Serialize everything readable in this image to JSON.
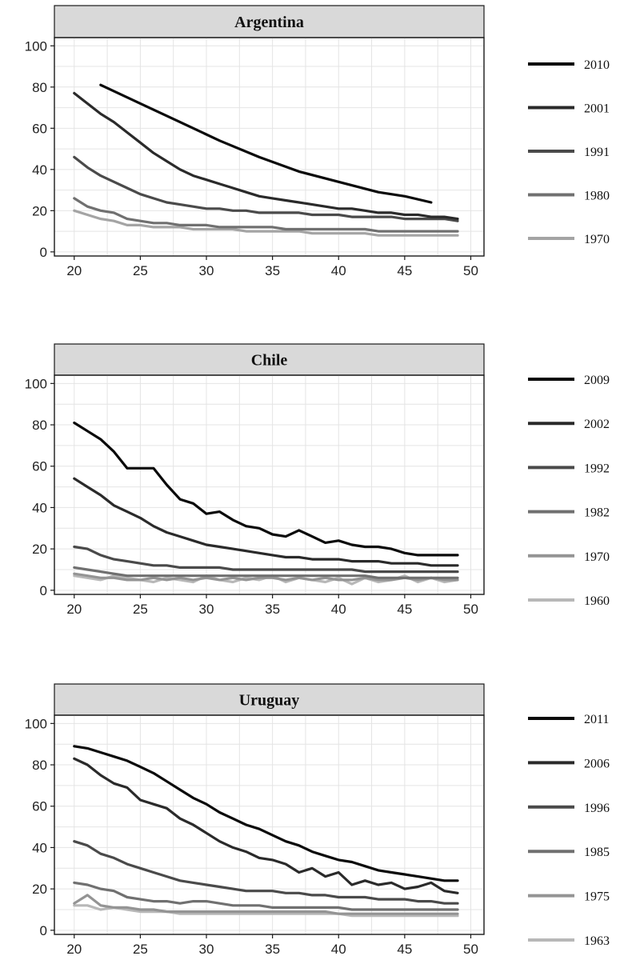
{
  "chart_data": [
    {
      "type": "line",
      "title": "Argentina",
      "xlabel": "",
      "ylabel": "",
      "xlim": [
        18.5,
        51
      ],
      "ylim": [
        -2,
        104
      ],
      "xticks": [
        20,
        25,
        30,
        35,
        40,
        45,
        50
      ],
      "yticks": [
        0,
        20,
        40,
        60,
        80,
        100
      ],
      "grid": true,
      "legend_position": "right",
      "series": [
        {
          "name": "2010",
          "color": "#0a0a0a",
          "x": [
            22,
            25,
            28,
            31,
            34,
            37,
            40,
            43,
            45,
            47
          ],
          "values": [
            81,
            72,
            63,
            54,
            46,
            39,
            34,
            29,
            27,
            24
          ]
        },
        {
          "name": "2001",
          "color": "#2a2a2a",
          "x": [
            20,
            21,
            22,
            23,
            24,
            25,
            26,
            27,
            28,
            29,
            30,
            31,
            32,
            33,
            34,
            35,
            36,
            37,
            38,
            39,
            40,
            41,
            42,
            43,
            44,
            45,
            46,
            47,
            48,
            49
          ],
          "values": [
            77,
            72,
            67,
            63,
            58,
            53,
            48,
            44,
            40,
            37,
            35,
            33,
            31,
            29,
            27,
            26,
            25,
            24,
            23,
            22,
            21,
            21,
            20,
            19,
            19,
            18,
            18,
            17,
            17,
            16
          ]
        },
        {
          "name": "1991",
          "color": "#4a4a4a",
          "x": [
            20,
            21,
            22,
            23,
            24,
            25,
            26,
            27,
            28,
            29,
            30,
            31,
            32,
            33,
            34,
            35,
            36,
            37,
            38,
            39,
            40,
            41,
            42,
            43,
            44,
            45,
            46,
            47,
            48,
            49
          ],
          "values": [
            46,
            41,
            37,
            34,
            31,
            28,
            26,
            24,
            23,
            22,
            21,
            21,
            20,
            20,
            19,
            19,
            19,
            19,
            18,
            18,
            18,
            17,
            17,
            17,
            17,
            16,
            16,
            16,
            16,
            15
          ]
        },
        {
          "name": "1980",
          "color": "#707070",
          "x": [
            20,
            21,
            22,
            23,
            24,
            25,
            26,
            27,
            28,
            29,
            30,
            31,
            32,
            33,
            34,
            35,
            36,
            37,
            38,
            39,
            40,
            41,
            42,
            43,
            44,
            45,
            46,
            47,
            48,
            49
          ],
          "values": [
            26,
            22,
            20,
            19,
            16,
            15,
            14,
            14,
            13,
            13,
            13,
            12,
            12,
            12,
            12,
            12,
            11,
            11,
            11,
            11,
            11,
            11,
            11,
            10,
            10,
            10,
            10,
            10,
            10,
            10
          ]
        },
        {
          "name": "1970",
          "color": "#a4a4a4",
          "x": [
            20,
            21,
            22,
            23,
            24,
            25,
            26,
            27,
            28,
            29,
            30,
            31,
            32,
            33,
            34,
            35,
            36,
            37,
            38,
            39,
            40,
            41,
            42,
            43,
            44,
            45,
            46,
            47,
            48,
            49
          ],
          "values": [
            20,
            18,
            16,
            15,
            13,
            13,
            12,
            12,
            12,
            11,
            11,
            11,
            11,
            10,
            10,
            10,
            10,
            10,
            9,
            9,
            9,
            9,
            9,
            8,
            8,
            8,
            8,
            8,
            8,
            8
          ]
        }
      ]
    },
    {
      "type": "line",
      "title": "Chile",
      "xlabel": "",
      "ylabel": "",
      "xlim": [
        18.5,
        51
      ],
      "ylim": [
        -2,
        104
      ],
      "xticks": [
        20,
        25,
        30,
        35,
        40,
        45,
        50
      ],
      "yticks": [
        0,
        20,
        40,
        60,
        80,
        100
      ],
      "grid": true,
      "legend_position": "right",
      "series": [
        {
          "name": "2009",
          "color": "#0a0a0a",
          "x": [
            20,
            21,
            22,
            23,
            24,
            25,
            26,
            27,
            28,
            29,
            30,
            31,
            32,
            33,
            34,
            35,
            36,
            37,
            38,
            39,
            40,
            41,
            42,
            43,
            44,
            45,
            46,
            47,
            48,
            49
          ],
          "values": [
            81,
            77,
            73,
            67,
            59,
            59,
            59,
            51,
            44,
            42,
            37,
            38,
            34,
            31,
            30,
            27,
            26,
            29,
            26,
            23,
            24,
            22,
            21,
            21,
            20,
            18,
            17,
            17,
            17,
            17
          ]
        },
        {
          "name": "2002",
          "color": "#2a2a2a",
          "x": [
            20,
            21,
            22,
            23,
            24,
            25,
            26,
            27,
            28,
            29,
            30,
            31,
            32,
            33,
            34,
            35,
            36,
            37,
            38,
            39,
            40,
            41,
            42,
            43,
            44,
            45,
            46,
            47,
            48,
            49
          ],
          "values": [
            54,
            50,
            46,
            41,
            38,
            35,
            31,
            28,
            26,
            24,
            22,
            21,
            20,
            19,
            18,
            17,
            16,
            16,
            15,
            15,
            15,
            14,
            14,
            14,
            13,
            13,
            13,
            12,
            12,
            12
          ]
        },
        {
          "name": "1992",
          "color": "#4a4a4a",
          "x": [
            20,
            21,
            22,
            23,
            24,
            25,
            26,
            27,
            28,
            29,
            30,
            31,
            32,
            33,
            34,
            35,
            36,
            37,
            38,
            39,
            40,
            41,
            42,
            43,
            44,
            45,
            46,
            47,
            48,
            49
          ],
          "values": [
            21,
            20,
            17,
            15,
            14,
            13,
            12,
            12,
            11,
            11,
            11,
            11,
            10,
            10,
            10,
            10,
            10,
            10,
            10,
            10,
            10,
            10,
            9,
            9,
            9,
            9,
            9,
            9,
            9,
            9
          ]
        },
        {
          "name": "1982",
          "color": "#707070",
          "x": [
            20,
            21,
            22,
            23,
            24,
            25,
            26,
            27,
            28,
            29,
            30,
            31,
            32,
            33,
            34,
            35,
            36,
            37,
            38,
            39,
            40,
            41,
            42,
            43,
            44,
            45,
            46,
            47,
            48,
            49
          ],
          "values": [
            11,
            10,
            9,
            8,
            7,
            7,
            7,
            7,
            7,
            7,
            7,
            7,
            7,
            7,
            7,
            7,
            7,
            7,
            7,
            7,
            7,
            7,
            7,
            6,
            6,
            6,
            6,
            6,
            6,
            6
          ]
        },
        {
          "name": "1970",
          "color": "#949494",
          "x": [
            20,
            21,
            22,
            23,
            24,
            25,
            26,
            27,
            28,
            29,
            30,
            31,
            32,
            33,
            34,
            35,
            36,
            37,
            38,
            39,
            40,
            41,
            42,
            43,
            44,
            45,
            46,
            47,
            48,
            49
          ],
          "values": [
            8,
            7,
            6,
            6,
            5,
            5,
            6,
            5,
            6,
            5,
            6,
            5,
            6,
            5,
            6,
            6,
            5,
            6,
            5,
            6,
            5,
            5,
            6,
            5,
            5,
            6,
            5,
            6,
            5,
            5
          ]
        },
        {
          "name": "1960",
          "color": "#b8b8b8",
          "x": [
            20,
            21,
            22,
            23,
            24,
            25,
            26,
            27,
            28,
            29,
            30,
            31,
            32,
            33,
            34,
            35,
            36,
            37,
            38,
            39,
            40,
            41,
            42,
            43,
            44,
            45,
            46,
            47,
            48,
            49
          ],
          "values": [
            7,
            6,
            5,
            7,
            6,
            5,
            4,
            6,
            5,
            4,
            7,
            5,
            4,
            6,
            5,
            7,
            4,
            6,
            5,
            4,
            6,
            3,
            6,
            4,
            5,
            7,
            4,
            6,
            4,
            5
          ]
        }
      ]
    },
    {
      "type": "line",
      "title": "Uruguay",
      "xlabel": "",
      "ylabel": "",
      "xlim": [
        18.5,
        51
      ],
      "ylim": [
        -2,
        104
      ],
      "xticks": [
        20,
        25,
        30,
        35,
        40,
        45,
        50
      ],
      "yticks": [
        0,
        20,
        40,
        60,
        80,
        100
      ],
      "grid": true,
      "legend_position": "right",
      "series": [
        {
          "name": "2011",
          "color": "#0a0a0a",
          "x": [
            20,
            21,
            22,
            23,
            24,
            25,
            26,
            27,
            28,
            29,
            30,
            31,
            32,
            33,
            34,
            35,
            36,
            37,
            38,
            39,
            40,
            41,
            42,
            43,
            44,
            45,
            46,
            47,
            48,
            49
          ],
          "values": [
            89,
            88,
            86,
            84,
            82,
            79,
            76,
            72,
            68,
            64,
            61,
            57,
            54,
            51,
            49,
            46,
            43,
            41,
            38,
            36,
            34,
            33,
            31,
            29,
            28,
            27,
            26,
            25,
            24,
            24
          ]
        },
        {
          "name": "2006",
          "color": "#2a2a2a",
          "x": [
            20,
            21,
            22,
            23,
            24,
            25,
            26,
            27,
            28,
            29,
            30,
            31,
            32,
            33,
            34,
            35,
            36,
            37,
            38,
            39,
            40,
            41,
            42,
            43,
            44,
            45,
            46,
            47,
            48,
            49
          ],
          "values": [
            83,
            80,
            75,
            71,
            69,
            63,
            61,
            59,
            54,
            51,
            47,
            43,
            40,
            38,
            35,
            34,
            32,
            28,
            30,
            26,
            28,
            22,
            24,
            22,
            23,
            20,
            21,
            23,
            19,
            18
          ]
        },
        {
          "name": "1996",
          "color": "#4a4a4a",
          "x": [
            20,
            21,
            22,
            23,
            24,
            25,
            26,
            27,
            28,
            29,
            30,
            31,
            32,
            33,
            34,
            35,
            36,
            37,
            38,
            39,
            40,
            41,
            42,
            43,
            44,
            45,
            46,
            47,
            48,
            49
          ],
          "values": [
            43,
            41,
            37,
            35,
            32,
            30,
            28,
            26,
            24,
            23,
            22,
            21,
            20,
            19,
            19,
            19,
            18,
            18,
            17,
            17,
            16,
            16,
            16,
            15,
            15,
            15,
            14,
            14,
            13,
            13
          ]
        },
        {
          "name": "1985",
          "color": "#707070",
          "x": [
            20,
            21,
            22,
            23,
            24,
            25,
            26,
            27,
            28,
            29,
            30,
            31,
            32,
            33,
            34,
            35,
            36,
            37,
            38,
            39,
            40,
            41,
            42,
            43,
            44,
            45,
            46,
            47,
            48,
            49
          ],
          "values": [
            23,
            22,
            20,
            19,
            16,
            15,
            14,
            14,
            13,
            14,
            14,
            13,
            12,
            12,
            12,
            11,
            11,
            11,
            11,
            11,
            11,
            10,
            10,
            10,
            10,
            10,
            10,
            10,
            10,
            10
          ]
        },
        {
          "name": "1975",
          "color": "#949494",
          "x": [
            20,
            21,
            22,
            23,
            24,
            25,
            26,
            27,
            28,
            29,
            30,
            31,
            32,
            33,
            34,
            35,
            36,
            37,
            38,
            39,
            40,
            41,
            42,
            43,
            44,
            45,
            46,
            47,
            48,
            49
          ],
          "values": [
            13,
            17,
            12,
            11,
            11,
            10,
            10,
            9,
            9,
            9,
            9,
            9,
            9,
            9,
            9,
            9,
            9,
            9,
            9,
            9,
            8,
            8,
            8,
            8,
            8,
            8,
            8,
            8,
            8,
            8
          ]
        },
        {
          "name": "1963",
          "color": "#b8b8b8",
          "x": [
            20,
            21,
            22,
            23,
            24,
            25,
            26,
            27,
            28,
            29,
            30,
            31,
            32,
            33,
            34,
            35,
            36,
            37,
            38,
            39,
            40,
            41,
            42,
            43,
            44,
            45,
            46,
            47,
            48,
            49
          ],
          "values": [
            12,
            12,
            10,
            11,
            10,
            9,
            9,
            9,
            8,
            8,
            8,
            8,
            8,
            8,
            8,
            8,
            8,
            8,
            8,
            8,
            8,
            7,
            7,
            7,
            7,
            7,
            7,
            7,
            7,
            7
          ]
        }
      ]
    }
  ]
}
